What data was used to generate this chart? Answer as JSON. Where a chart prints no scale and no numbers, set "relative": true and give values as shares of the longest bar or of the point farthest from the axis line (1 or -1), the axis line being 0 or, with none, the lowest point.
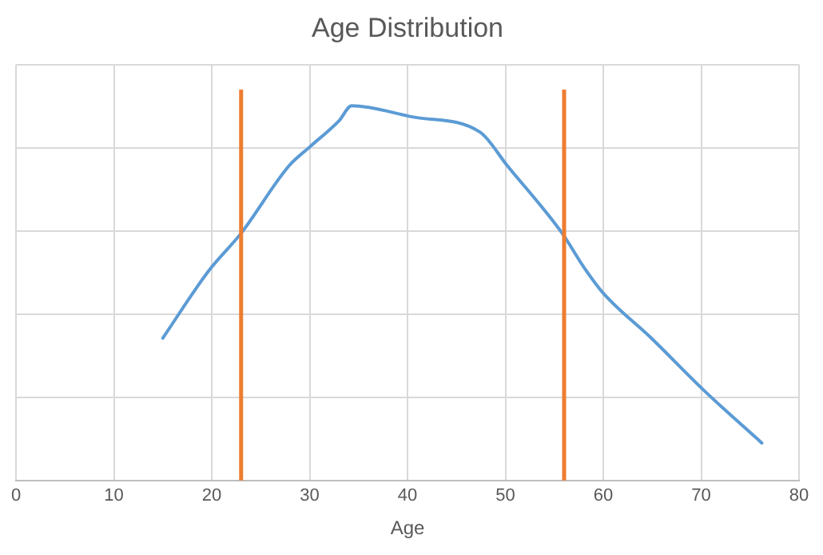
{
  "chart_data": {
    "type": "line",
    "title": "Age Distribution",
    "xlabel": "Age",
    "relative": true,
    "xlim": [
      0,
      80
    ],
    "xticks": [
      0,
      10,
      20,
      30,
      40,
      50,
      60,
      70,
      80
    ],
    "grid": true,
    "legend": false,
    "marker": "none",
    "series": [
      {
        "color": "#5b9bd5",
        "x": [
          15,
          19.7,
          23,
          27.9,
          30,
          33,
          34.3,
          40.6,
          47.4,
          50.2,
          55.8,
          58,
          60,
          64.9,
          70.3,
          76.2
        ],
        "values": [
          0.38,
          0.56,
          0.66,
          0.84,
          0.89,
          0.96,
          1,
          0.97,
          0.93,
          0.84,
          0.66,
          0.57,
          0.5,
          0.38,
          0.24,
          0.1
        ]
      }
    ],
    "ref_lines": [
      {
        "axis": "x",
        "value": 23,
        "color": "#ed7d31"
      },
      {
        "axis": "x",
        "value": 56,
        "color": "#ed7d31"
      }
    ]
  }
}
